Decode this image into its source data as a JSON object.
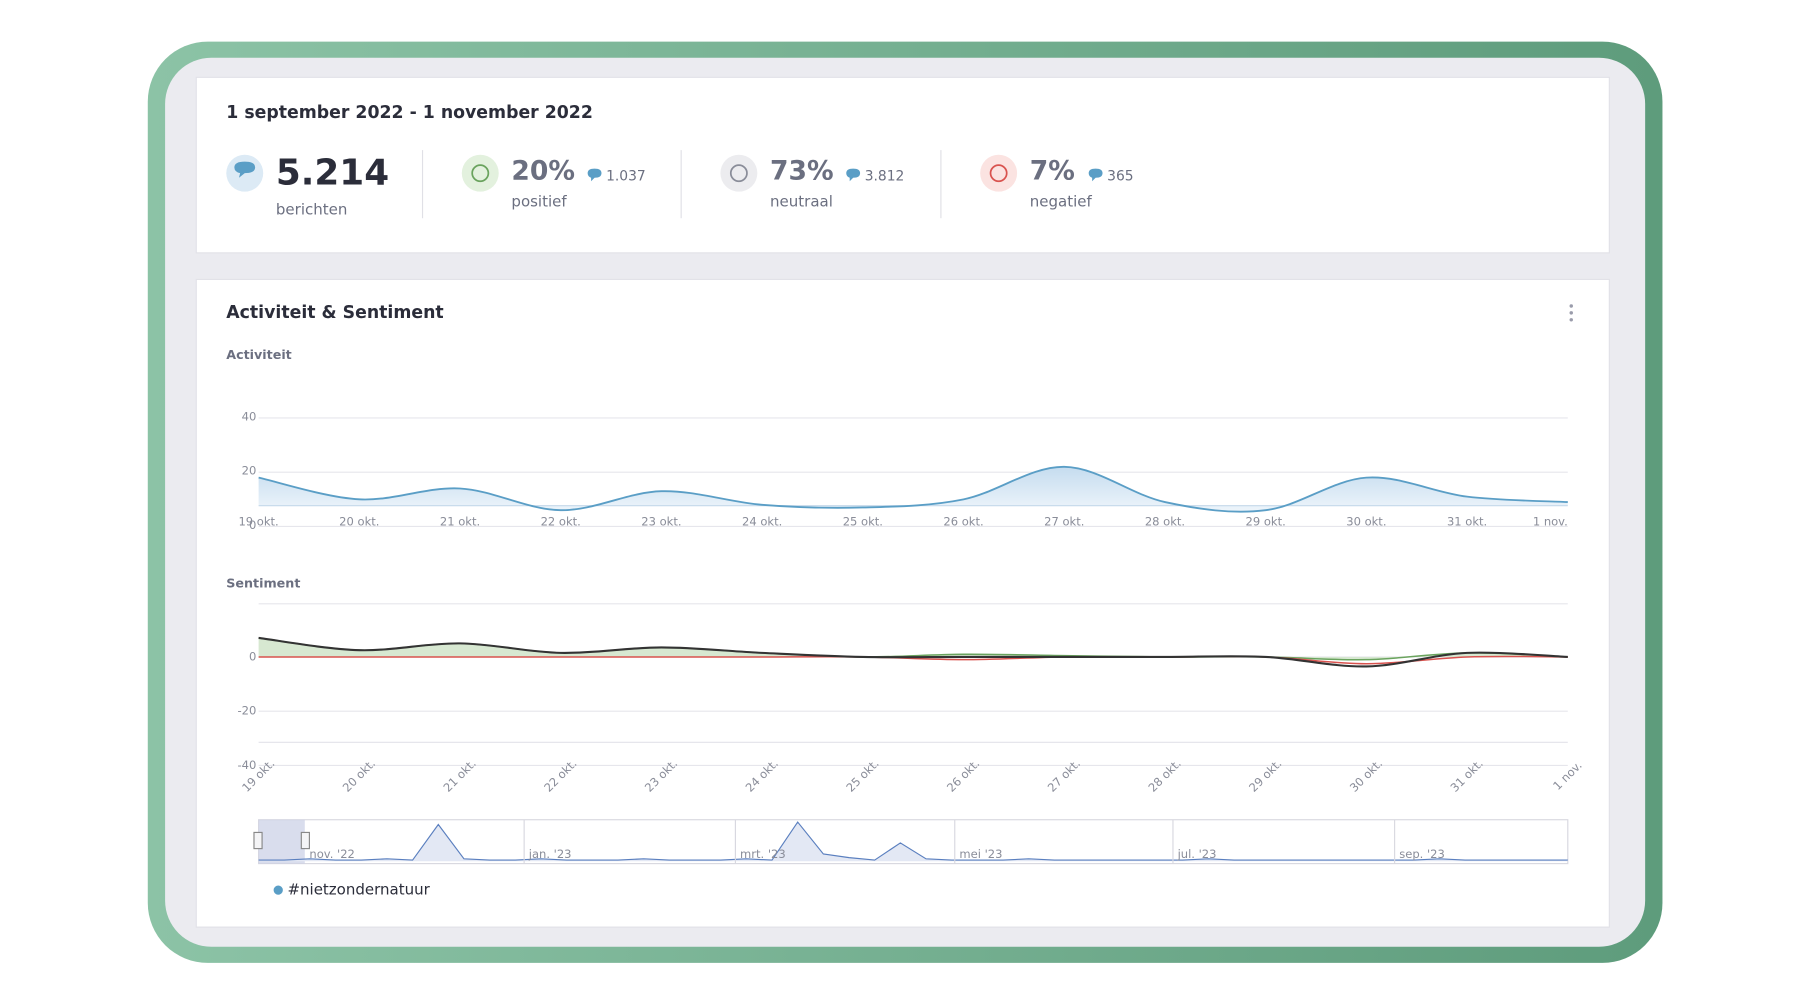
{
  "header": {
    "date_range": "1 september 2022 - 1 november 2022"
  },
  "stats": [
    {
      "value": "5.214",
      "label": "berichten"
    },
    {
      "value": "20%",
      "count": "1.037",
      "label": "positief"
    },
    {
      "value": "73%",
      "count": "3.812",
      "label": "neutraal"
    },
    {
      "value": "7%",
      "count": "365",
      "label": "negatief"
    }
  ],
  "panel": {
    "title": "Activiteit & Sentiment"
  },
  "activity": {
    "type": "line",
    "title": "Activiteit",
    "categories": [
      "19 okt.",
      "20 okt.",
      "21 okt.",
      "22 okt.",
      "23 okt.",
      "24 okt.",
      "25 okt.",
      "26 okt.",
      "27 okt.",
      "28 okt.",
      "29 okt.",
      "30 okt.",
      "31 okt.",
      "1 nov."
    ],
    "values": [
      18,
      10,
      14,
      6,
      13,
      8,
      7,
      10,
      22,
      9,
      6,
      18,
      11,
      9
    ],
    "color": "#5a9ec6",
    "ylim": [
      0,
      40
    ],
    "yticks": [
      0,
      20,
      40
    ]
  },
  "sentiment": {
    "type": "line",
    "title": "Sentiment",
    "categories": [
      "19 okt.",
      "20 okt.",
      "21 okt.",
      "22 okt.",
      "23 okt.",
      "24 okt.",
      "25 okt.",
      "26 okt.",
      "27 okt.",
      "28 okt.",
      "29 okt.",
      "30 okt.",
      "31 okt.",
      "1 nov."
    ],
    "series": [
      {
        "color": "#6aa35e",
        "values": [
          7,
          2.5,
          5,
          1.5,
          3.5,
          1.5,
          0,
          1,
          0.5,
          0,
          0,
          -1,
          1.5,
          0
        ]
      },
      {
        "color": "#d9534f",
        "values": [
          0,
          0,
          0,
          0,
          0,
          0,
          0,
          -1,
          0,
          0,
          0,
          -2.5,
          0,
          0
        ]
      },
      {
        "color": "#333333",
        "values": [
          7,
          2.5,
          5,
          1.5,
          3.5,
          1.5,
          0,
          0,
          0,
          0,
          0,
          -3.5,
          1.5,
          0
        ]
      }
    ],
    "ylim": [
      -40,
      20
    ],
    "yticks": [
      -40,
      -20,
      0
    ]
  },
  "navigator": {
    "type": "line",
    "labels": [
      "nov. '22",
      "jan. '23",
      "mrt. '23",
      "mei '23",
      "jul. '23",
      "sep. '23"
    ],
    "values": [
      1,
      1,
      2,
      1,
      1,
      2,
      1,
      30,
      2,
      1,
      1,
      2,
      1,
      1,
      1,
      2,
      1,
      1,
      1,
      2,
      1,
      32,
      6,
      3,
      1,
      15,
      2,
      1,
      1,
      1,
      2,
      1,
      1,
      1,
      1,
      1,
      1,
      2,
      1,
      1,
      1,
      1,
      1,
      1,
      1,
      1,
      2,
      1,
      1,
      1,
      1,
      1
    ],
    "color": "#5a7fbf"
  },
  "legend": {
    "label": "#nietzondernatuur",
    "color": "#5a9ec6"
  }
}
